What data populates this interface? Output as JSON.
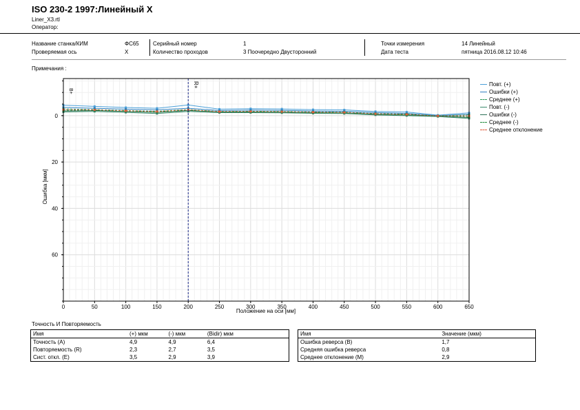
{
  "header": {
    "title": "ISO 230-2 1997:Линейный X",
    "file": "Liner_X3.rtl",
    "operator_label": "Оператор:"
  },
  "info": {
    "machine_label": "Название станка/КИМ",
    "machine_value": "ФС65",
    "axis_label": "Проверяемая ось",
    "axis_value": "X",
    "serial_label": "Серийный номер",
    "serial_value": "1",
    "runs_label": "Количество проходов",
    "runs_value": "3 Поочередно Двусторонний",
    "points_label": "Точки измерения",
    "points_value": "14 Линейный",
    "date_label": "Дата теста",
    "date_value": "пятница 2016.08.12 10:46"
  },
  "notes_label": "Примечания :",
  "chart_data": {
    "type": "line",
    "xlabel": "Положение на оси [мм]",
    "ylabel": "Ошибка [мкм]",
    "xlim": [
      0,
      650
    ],
    "ylim": [
      -16,
      80
    ],
    "y_inverted": true,
    "xticks": [
      0,
      50,
      100,
      150,
      200,
      250,
      300,
      350,
      400,
      450,
      500,
      550,
      600,
      650
    ],
    "yticks": [
      0,
      20,
      40,
      60
    ],
    "grid": true,
    "legend_position": "right",
    "reference_line": {
      "x": 200,
      "label": "R+"
    },
    "reference_line_left": {
      "x": 0,
      "label": "B+"
    },
    "x": [
      0,
      50,
      100,
      150,
      200,
      250,
      300,
      350,
      400,
      450,
      500,
      550,
      600,
      650
    ],
    "series": [
      {
        "name": "Повт. (+)",
        "color": "#4a9fd8",
        "values": [
          -4.5,
          -4.0,
          -3.5,
          -3.2,
          -4.6,
          -2.8,
          -3.0,
          -2.9,
          -2.6,
          -2.5,
          -1.8,
          -1.6,
          -0.2,
          -1.2
        ]
      },
      {
        "name": "Ошибки (+)",
        "color": "#2f7fbf",
        "values": [
          -3.5,
          -3.2,
          -2.8,
          -2.5,
          -3.2,
          -2.2,
          -2.4,
          -2.3,
          -2.0,
          -1.9,
          -1.3,
          -1.0,
          0.0,
          -0.6
        ]
      },
      {
        "name": "Среднее (+)",
        "color": "#2a9a5a",
        "values": [
          -2.9,
          -2.6,
          -2.2,
          -1.9,
          -2.6,
          -1.8,
          -1.9,
          -1.8,
          -1.6,
          -1.5,
          -0.9,
          -0.7,
          0.1,
          -0.3
        ]
      },
      {
        "name": "Повт. (-)",
        "color": "#3a8a6a",
        "values": [
          -1.6,
          -1.8,
          -1.4,
          -0.9,
          -1.8,
          -1.3,
          -1.3,
          -1.2,
          -1.0,
          -0.9,
          -0.3,
          0.0,
          0.4,
          1.2
        ]
      },
      {
        "name": "Ошибки (-)",
        "color": "#2b6f55",
        "values": [
          -2.0,
          -2.2,
          -1.8,
          -1.4,
          -2.2,
          -1.6,
          -1.6,
          -1.5,
          -1.3,
          -1.2,
          -0.6,
          -0.3,
          0.2,
          0.8
        ]
      },
      {
        "name": "Среднее (-)",
        "color": "#1f8a3a",
        "values": [
          -2.3,
          -2.4,
          -2.0,
          -1.6,
          -2.4,
          -1.7,
          -1.7,
          -1.6,
          -1.4,
          -1.3,
          -0.7,
          -0.4,
          0.1,
          0.5
        ]
      },
      {
        "name": "Среднее отклонение",
        "color": "#e05a3a",
        "values": [
          -2.6,
          -2.5,
          -2.1,
          -1.8,
          -2.5,
          -1.75,
          -1.8,
          -1.7,
          -1.5,
          -1.4,
          -0.8,
          -0.55,
          0.1,
          0.1
        ]
      }
    ]
  },
  "accuracy": {
    "title": "Точность И Повторяемость",
    "headers": [
      "Имя",
      "(+) мкм",
      "(-) мкм",
      "(Bidir) мкм"
    ],
    "rows": [
      [
        "Точность (A)",
        "4,9",
        "4,9",
        "6,4"
      ],
      [
        "Повторяемость (R)",
        "2,3",
        "2,7",
        "3,5"
      ],
      [
        "Сист. откл. (E)",
        "3,5",
        "2,9",
        "3,9"
      ]
    ]
  },
  "reverse": {
    "headers": [
      "Имя",
      "Значение (мкм)"
    ],
    "rows": [
      [
        "Ошибка реверса (B)",
        "1,7"
      ],
      [
        "Средняя ошибка реверса",
        "0,8"
      ],
      [
        "Среднее отклонение (M)",
        "2,9"
      ]
    ]
  }
}
